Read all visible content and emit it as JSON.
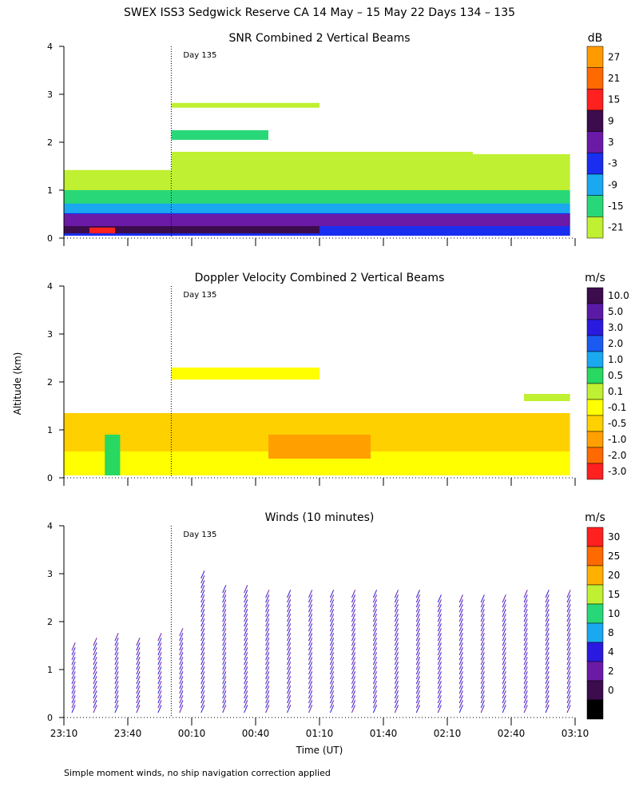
{
  "title": "SWEX ISS3 Sedgwick Reserve CA  14 May – 15 May 22 Days 134 – 135",
  "y_axis_label": "Altitude (km)",
  "x_axis_label": "Time (UT)",
  "footnote": "Simple moment winds, no ship navigation correction applied",
  "day_marker_label": "Day 135",
  "time_ticks": [
    "23:10",
    "23:40",
    "00:10",
    "00:40",
    "01:10",
    "01:40",
    "02:10",
    "02:40",
    "03:10"
  ],
  "altitude_ticks": [
    "0",
    "1",
    "2",
    "3",
    "4"
  ],
  "colors": {
    "white": "#ffffff",
    "axis": "#000000"
  },
  "chart_data": [
    {
      "type": "heatmap",
      "title": "SNR Combined 2 Vertical Beams",
      "units": "dB",
      "ylim": [
        0,
        4
      ],
      "xlim": [
        "23:10",
        "03:10"
      ],
      "colorbar": {
        "labels": [
          "27",
          "21",
          "15",
          "9",
          "3",
          "-3",
          "-9",
          "-15",
          "-21"
        ],
        "colors": [
          "#ff9a00",
          "#ff6a00",
          "#ff2020",
          "#3c0c4c",
          "#6a1aa6",
          "#1a2ef0",
          "#1aa8f0",
          "#28d878",
          "#bff032"
        ]
      },
      "regions": [
        {
          "t0": 0.0,
          "t1": 0.21,
          "z0": 0.05,
          "z1": 1.42,
          "level": "-21"
        },
        {
          "t0": 0.21,
          "t1": 0.8,
          "z0": 0.1,
          "z1": 1.8,
          "level": "-21"
        },
        {
          "t0": 0.8,
          "t1": 0.99,
          "z0": 0.1,
          "z1": 1.75,
          "level": "-21"
        },
        {
          "t0": 0.21,
          "t1": 0.4,
          "z0": 2.05,
          "z1": 2.25,
          "level": "-15"
        },
        {
          "t0": 0.21,
          "t1": 0.5,
          "z0": 2.72,
          "z1": 2.82,
          "level": "-21"
        },
        {
          "t0": 0.0,
          "t1": 0.99,
          "z0": 0.05,
          "z1": 1.0,
          "level": "-15"
        },
        {
          "t0": 0.0,
          "t1": 0.99,
          "z0": 0.05,
          "z1": 0.72,
          "level": "-9"
        },
        {
          "t0": 0.0,
          "t1": 0.99,
          "z0": 0.05,
          "z1": 0.52,
          "level": "-3"
        },
        {
          "t0": 0.0,
          "t1": 0.5,
          "z0": 0.1,
          "z1": 0.32,
          "level": "9"
        },
        {
          "t0": 0.0,
          "t1": 0.99,
          "z0": 0.25,
          "z1": 0.5,
          "level": "3"
        },
        {
          "t0": 0.05,
          "t1": 0.1,
          "z0": 0.1,
          "z1": 0.22,
          "level": "15"
        }
      ]
    },
    {
      "type": "heatmap",
      "title": "Doppler Velocity Combined 2 Vertical Beams",
      "units": "m/s",
      "ylim": [
        0,
        4
      ],
      "xlim": [
        "23:10",
        "03:10"
      ],
      "colorbar": {
        "labels": [
          "10.0",
          "5.0",
          "3.0",
          "2.0",
          "1.0",
          "0.5",
          "0.1",
          "-0.1",
          "-0.5",
          "-1.0",
          "-2.0",
          "-3.0"
        ],
        "colors": [
          "#3c0c4c",
          "#5a1aa6",
          "#2a1ae0",
          "#1a5af0",
          "#1aa8f0",
          "#28d860",
          "#bff032",
          "#ffff00",
          "#ffd000",
          "#ffa000",
          "#ff6a00",
          "#ff2020"
        ]
      },
      "regions": [
        {
          "t0": 0.0,
          "t1": 0.99,
          "z0": 0.05,
          "z1": 1.35,
          "level": "-0.5"
        },
        {
          "t0": 0.0,
          "t1": 0.99,
          "z0": 0.05,
          "z1": 0.55,
          "level": "-0.1"
        },
        {
          "t0": 0.08,
          "t1": 0.11,
          "z0": 0.05,
          "z1": 0.9,
          "level": "0.5"
        },
        {
          "t0": 0.21,
          "t1": 0.5,
          "z0": 2.05,
          "z1": 2.3,
          "level": "-0.1"
        },
        {
          "t0": 0.9,
          "t1": 0.99,
          "z0": 1.6,
          "z1": 1.75,
          "level": "0.1"
        },
        {
          "t0": 0.4,
          "t1": 0.6,
          "z0": 0.4,
          "z1": 0.9,
          "level": "-1.0"
        }
      ]
    },
    {
      "type": "wind-barbs",
      "title": "Winds (10 minutes)",
      "units": "m/s",
      "ylim": [
        0,
        4
      ],
      "xlim": [
        "23:10",
        "03:10"
      ],
      "colorbar": {
        "labels": [
          "30",
          "25",
          "20",
          "15",
          "10",
          "8",
          "4",
          "2",
          "0"
        ],
        "colors": [
          "#ff2020",
          "#ff6a00",
          "#ffb000",
          "#bff032",
          "#28d878",
          "#1aa8f0",
          "#2a1ae0",
          "#6a1aa6",
          "#3c0c4c",
          "#000000"
        ]
      },
      "profile_times": [
        "23:13",
        "23:23",
        "23:33",
        "23:43",
        "23:53",
        "00:03",
        "00:13",
        "00:23",
        "00:33",
        "00:43",
        "00:53",
        "01:03",
        "01:13",
        "01:23",
        "01:33",
        "01:43",
        "01:53",
        "02:03",
        "02:13",
        "02:23",
        "02:33",
        "02:43",
        "02:53",
        "03:03"
      ],
      "profile_top_km": [
        1.5,
        1.6,
        1.65,
        1.6,
        1.65,
        1.75,
        3.0,
        2.65,
        2.65,
        2.6,
        2.6,
        2.6,
        2.6,
        2.6,
        2.6,
        2.6,
        2.6,
        2.5,
        2.5,
        2.5,
        2.5,
        2.6,
        2.6,
        2.6
      ],
      "wind_dir_deg": 150,
      "typical_speed_ms": [
        4,
        8
      ]
    }
  ]
}
